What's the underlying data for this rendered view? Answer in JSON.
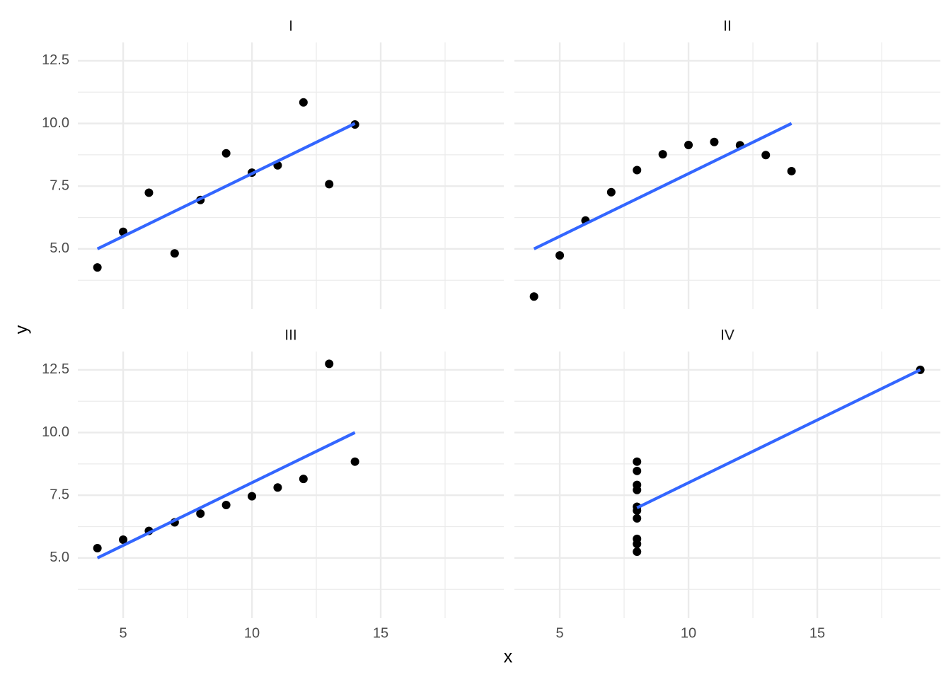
{
  "chart_data": {
    "type": "scatter",
    "x_label": "x",
    "y_label": "y",
    "xlim": [
      3.24,
      19.78
    ],
    "ylim": [
      2.6,
      13.23
    ],
    "xticks": [
      5,
      10,
      15
    ],
    "yticks": [
      {
        "value": 5,
        "label": "5.0"
      },
      7.5,
      {
        "value": 10,
        "label": "10.0"
      },
      12.5
    ],
    "xminor": [
      7.5,
      12.5,
      17.5
    ],
    "yminor": [
      3.75,
      6.25,
      8.75,
      11.25
    ],
    "grid": true,
    "point_color": "#000000",
    "fit_color": "#3366ff",
    "panels": [
      {
        "title": "I",
        "x": [
          10,
          8,
          13,
          9,
          11,
          14,
          6,
          4,
          12,
          7,
          5
        ],
        "y": [
          8.04,
          6.95,
          7.58,
          8.81,
          8.33,
          9.96,
          7.24,
          4.26,
          10.84,
          4.82,
          5.68
        ],
        "fit": {
          "x": [
            4,
            14
          ],
          "y": [
            5,
            10
          ]
        }
      },
      {
        "title": "II",
        "x": [
          10,
          8,
          13,
          9,
          11,
          14,
          6,
          4,
          12,
          7,
          5
        ],
        "y": [
          9.14,
          8.14,
          8.74,
          8.77,
          9.26,
          8.1,
          6.13,
          3.1,
          9.13,
          7.26,
          4.74
        ],
        "fit": {
          "x": [
            4,
            14
          ],
          "y": [
            5,
            10
          ]
        }
      },
      {
        "title": "III",
        "x": [
          10,
          8,
          13,
          9,
          11,
          14,
          6,
          4,
          12,
          7,
          5
        ],
        "y": [
          7.46,
          6.77,
          12.74,
          7.11,
          7.81,
          8.84,
          6.08,
          5.39,
          8.15,
          6.42,
          5.73
        ],
        "fit": {
          "x": [
            4,
            14
          ],
          "y": [
            5,
            10
          ]
        }
      },
      {
        "title": "IV",
        "x": [
          8,
          8,
          8,
          8,
          8,
          8,
          8,
          19,
          8,
          8,
          8
        ],
        "y": [
          6.58,
          5.76,
          7.71,
          8.84,
          8.47,
          7.04,
          5.25,
          12.5,
          5.56,
          7.91,
          6.89
        ],
        "fit": {
          "x": [
            8,
            19
          ],
          "y": [
            7,
            12.5
          ]
        }
      }
    ]
  }
}
